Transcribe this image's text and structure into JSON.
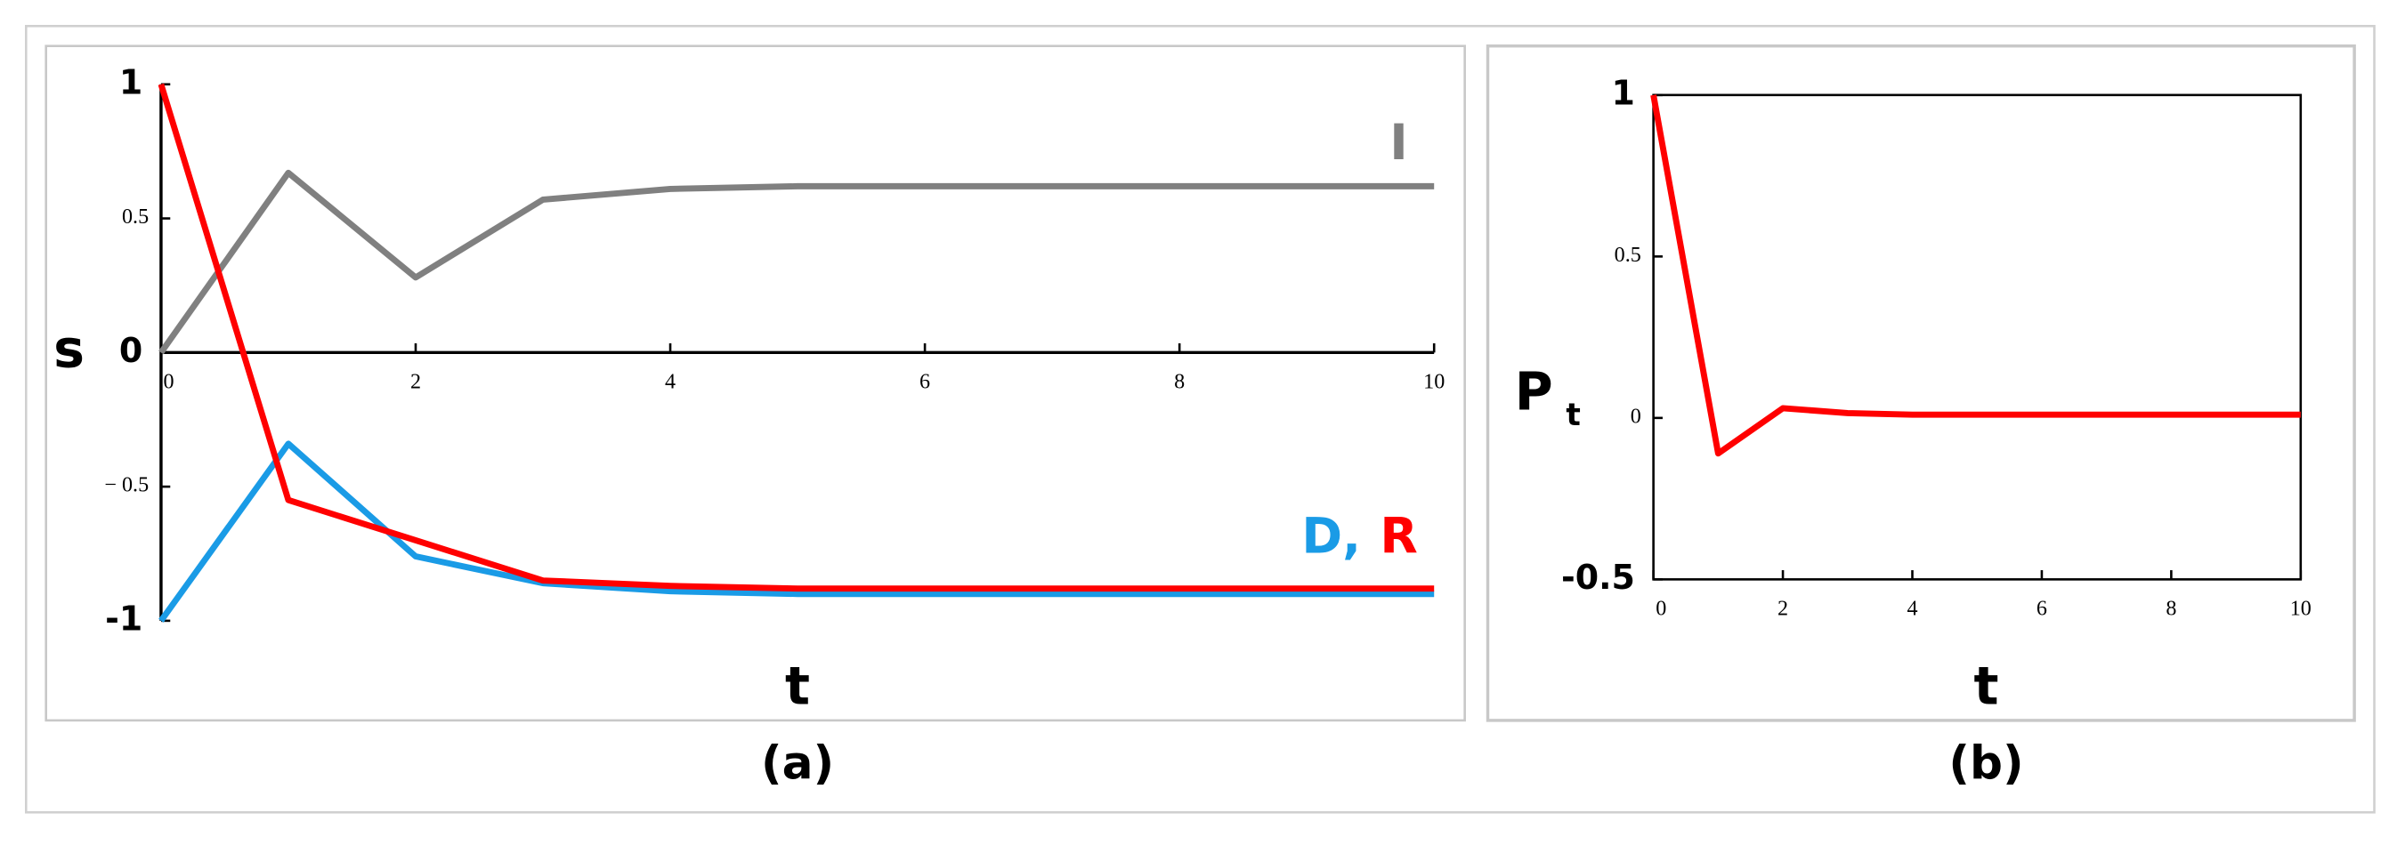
{
  "chart_data": [
    {
      "type": "line",
      "ylabel": "s",
      "xlabel": "t",
      "caption": "(a)",
      "x": [
        0,
        1,
        2,
        3,
        4,
        5,
        6,
        7,
        8,
        9,
        10
      ],
      "xlim": [
        0,
        10
      ],
      "xticks": [
        0,
        2,
        4,
        6,
        8,
        10
      ],
      "ylim": [
        -1,
        1
      ],
      "yticks": [
        -1,
        {
          "value": -0.5,
          "label": "− 0.5"
        },
        0,
        0.5,
        1
      ],
      "series": [
        {
          "name": "I",
          "color": "#808080",
          "values": [
            0,
            0.67,
            0.28,
            0.57,
            0.61,
            0.62,
            0.62,
            0.62,
            0.62,
            0.62,
            0.62
          ]
        },
        {
          "name": "D,",
          "color": "#1a9be6",
          "values": [
            -1,
            -0.34,
            -0.76,
            -0.86,
            -0.89,
            -0.9,
            -0.9,
            -0.9,
            -0.9,
            -0.9,
            -0.9
          ]
        },
        {
          "name": "R",
          "color": "#ff0000",
          "values": [
            1,
            -0.55,
            -0.7,
            -0.85,
            -0.87,
            -0.88,
            -0.88,
            -0.88,
            -0.88,
            -0.88,
            -0.88
          ]
        }
      ]
    },
    {
      "type": "line",
      "ylabel": "P",
      "ylabel_subscript": "t",
      "xlabel": "t",
      "caption": "(b)",
      "x": [
        0,
        1,
        2,
        3,
        4,
        5,
        6,
        7,
        8,
        9,
        10
      ],
      "xlim": [
        0,
        10
      ],
      "xticks": [
        0,
        2,
        4,
        6,
        8,
        10
      ],
      "ylim": [
        -0.5,
        1
      ],
      "yticks": [
        -0.5,
        0,
        0.5,
        1
      ],
      "series": [
        {
          "name": "P",
          "color": "#ff0000",
          "values": [
            1,
            -0.11,
            0.03,
            0.015,
            0.01,
            0.01,
            0.01,
            0.01,
            0.01,
            0.01,
            0.01
          ]
        }
      ]
    }
  ]
}
